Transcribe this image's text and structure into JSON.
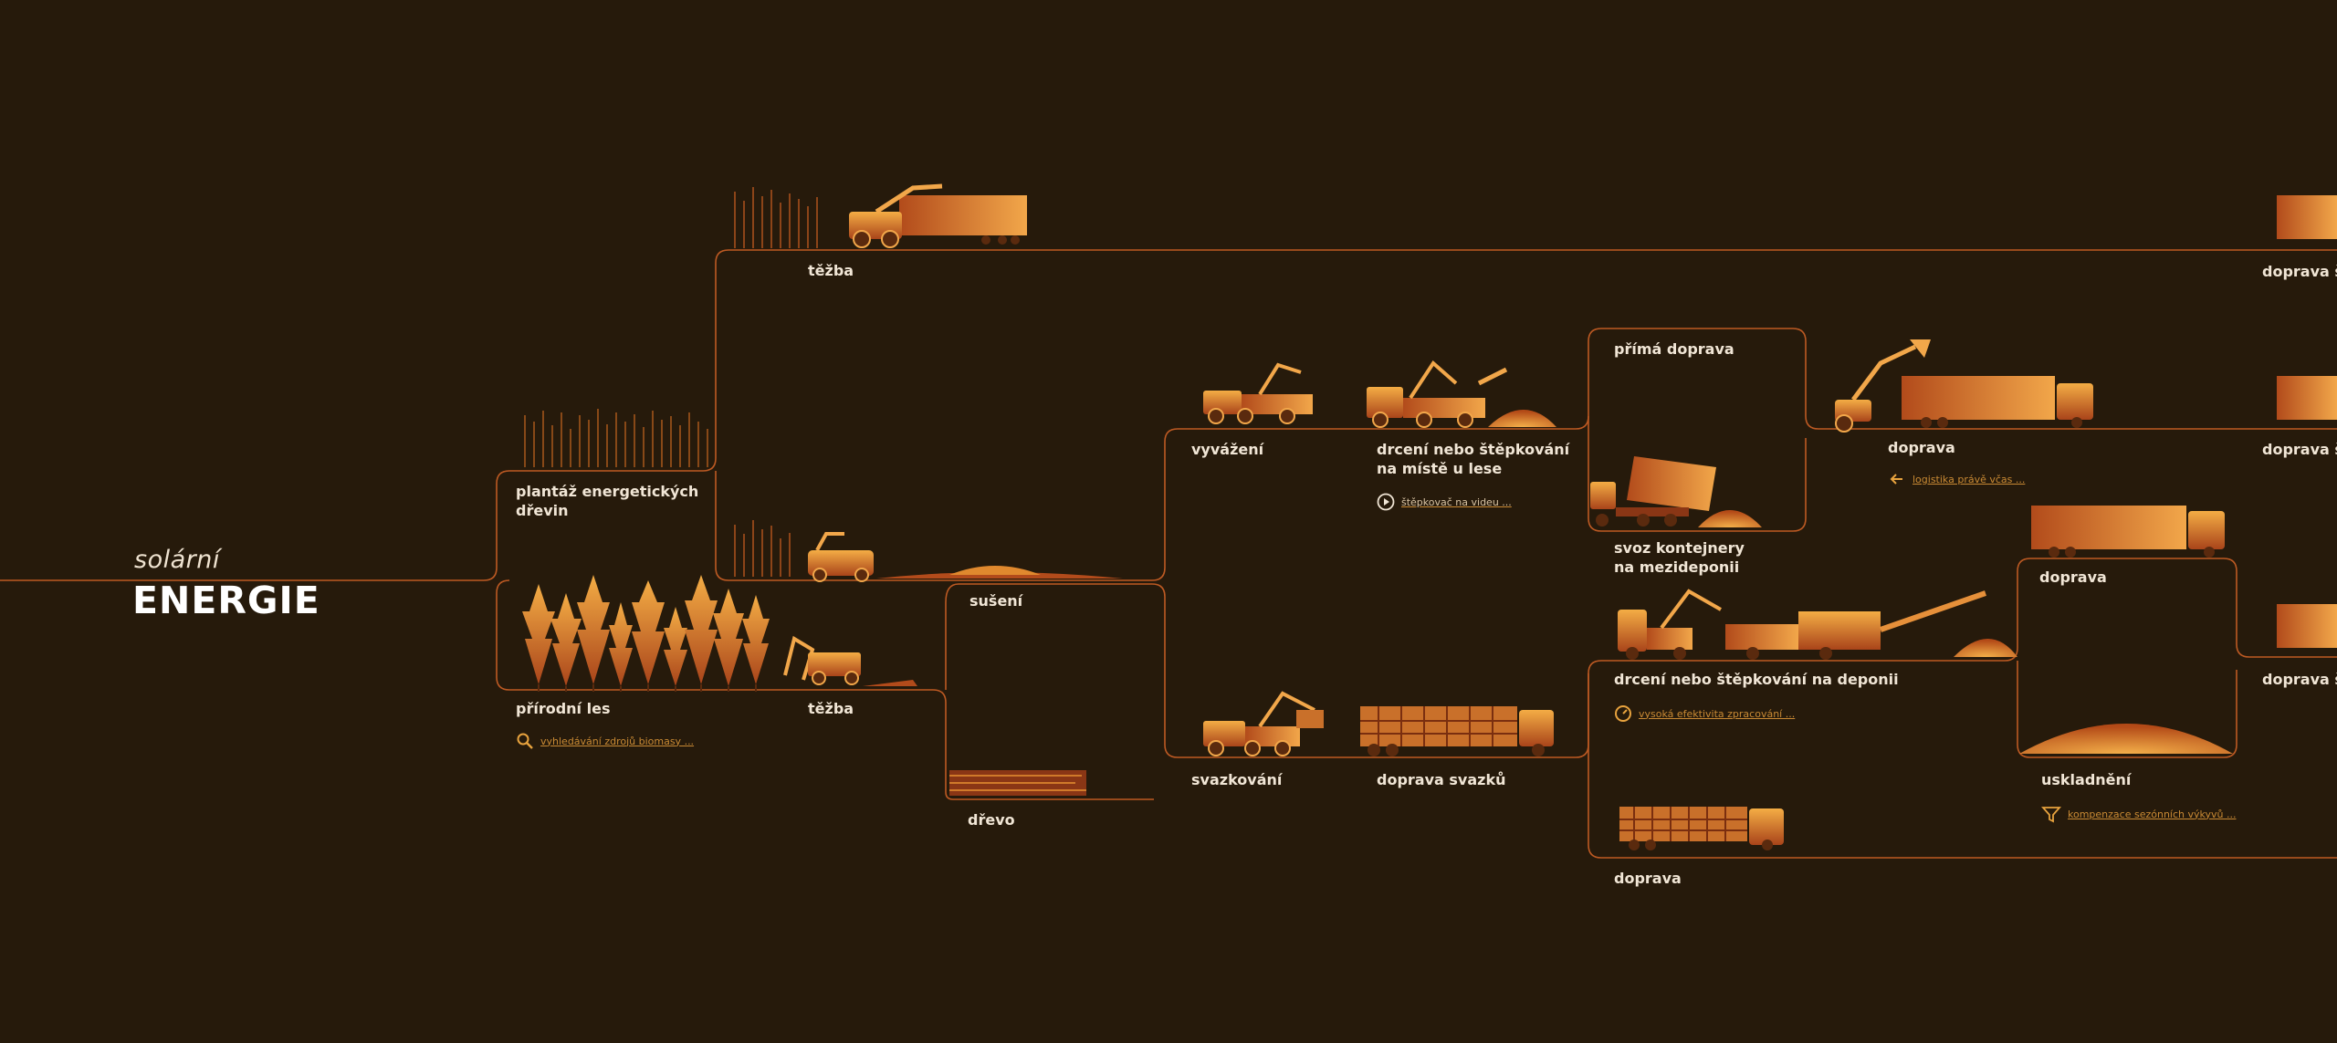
{
  "hero": {
    "subtitle": "solární",
    "title": "ENERGIE"
  },
  "colors": {
    "background": "#261a0b",
    "connector_line": "#bd5a23",
    "label_text": "#f1e6d6",
    "link_text": "#c98a34",
    "illustration_light": "#f2a33a",
    "illustration_dark": "#9c3d14"
  },
  "nodes": {
    "plantaz": "plantáž energetických\ndřevin",
    "prirodni_les": "přírodní les",
    "tezba_top": "těžba",
    "tezba_forest": "těžba",
    "suseni": "sušení",
    "drevo": "dřevo",
    "vyvazeni": "vyvážení",
    "drceni_les": "drcení nebo štěpkování\nna místě u lese",
    "svazkovani": "svazkování",
    "doprava_svazku": "doprava svazků",
    "prima_doprava": "přímá doprava",
    "svoz_kontejnery": "svoz kontejnery\nna mezideponii",
    "drceni_deponie": "drcení nebo štěpkování na deponii",
    "doprava_top": "doprava",
    "doprava_mid": "doprava",
    "doprava_bottom": "doprava",
    "uskladneni": "uskladnění",
    "doprava_stepky_1": "doprava štěpky",
    "doprava_stepky_2": "doprava štěpky",
    "doprava_stepky_3": "doprava štěpky"
  },
  "links": {
    "vyhledavani": {
      "icon": "search-icon",
      "text": "vyhledávání zdrojů biomasy ..."
    },
    "stepkovac_video": {
      "icon": "play-icon",
      "text": "štěpkovač na videu ..."
    },
    "logistika": {
      "icon": "arrow-left-icon",
      "text": "logistika právě včas ..."
    },
    "efektivita": {
      "icon": "gauge-icon",
      "text": "vysoká efektivita zpracování ..."
    },
    "kompenzace": {
      "icon": "funnel-icon",
      "text": "kompenzace sezónních výkyvů ..."
    }
  }
}
